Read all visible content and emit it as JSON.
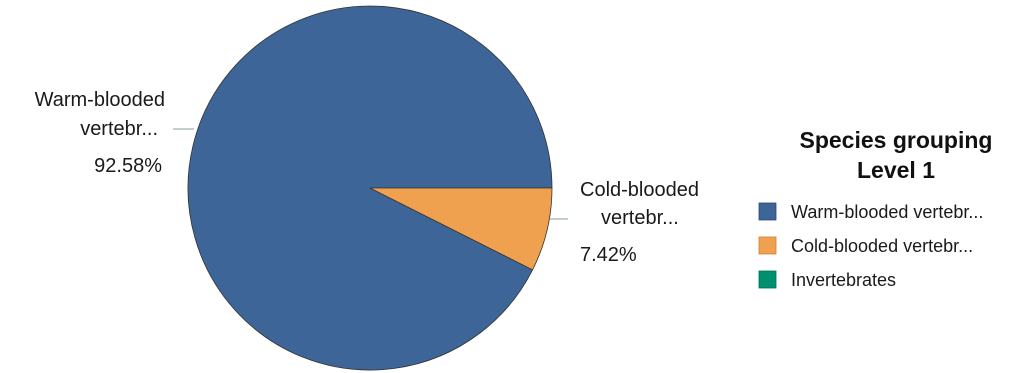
{
  "chart_data": {
    "type": "pie",
    "slices": [
      {
        "label": "Warm-blooded vertebr...",
        "chart_label_lines": [
          "Warm-blooded",
          "vertebr..."
        ],
        "value": 92.58,
        "value_label": "92.58%",
        "color": "#3d6597"
      },
      {
        "label": "Cold-blooded vertebr...",
        "chart_label_lines": [
          "Cold-blooded",
          "vertebr..."
        ],
        "value": 7.42,
        "value_label": "7.42%",
        "color": "#f0a150"
      }
    ],
    "legend": {
      "title_lines": [
        "Species grouping",
        "Level 1"
      ],
      "placement": "right",
      "entries": [
        {
          "label": "Warm-blooded vertebr...",
          "color": "#3d6597"
        },
        {
          "label": "Cold-blooded vertebr...",
          "color": "#f0a150"
        },
        {
          "label": "Invertebrates",
          "color": "#00906e"
        }
      ]
    }
  }
}
